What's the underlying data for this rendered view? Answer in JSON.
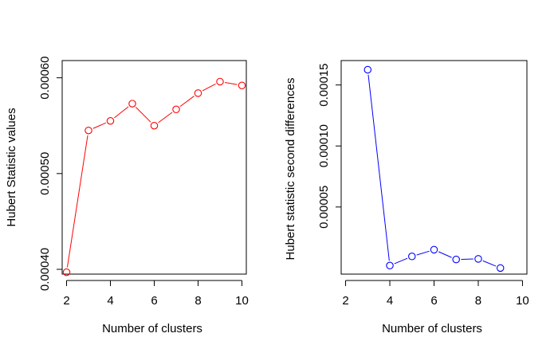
{
  "chart_data": [
    {
      "type": "line",
      "xlabel": "Number of clusters",
      "ylabel": "Hubert Statistic values",
      "xlim": [
        1.8,
        10.2
      ],
      "ylim": [
        0.000395,
        0.000618
      ],
      "xticks": [
        2,
        4,
        6,
        8,
        10
      ],
      "xtick_labels": [
        "2",
        "4",
        "6",
        "8",
        "10"
      ],
      "yticks": [
        0.0004,
        0.0005,
        0.0006
      ],
      "ytick_labels": [
        "0.00040",
        "0.00050",
        "0.00060"
      ],
      "color": "#ff0000",
      "marker": "open-circle",
      "grid": false,
      "series": [
        {
          "x": [
            2,
            3,
            4,
            5,
            6,
            7,
            8,
            9,
            10
          ],
          "values": [
            0.000397,
            0.000545,
            0.000555,
            0.000573,
            0.00055,
            0.000567,
            0.000584,
            0.000596,
            0.000592
          ]
        }
      ]
    },
    {
      "type": "line",
      "xlabel": "Number of clusters",
      "ylabel": "Hubert statistic second differences",
      "xlim": [
        1.8,
        10.2
      ],
      "ylim": [
        -5e-06,
        0.00017
      ],
      "xticks": [
        2,
        4,
        6,
        8,
        10
      ],
      "xtick_labels": [
        "2",
        "4",
        "6",
        "8",
        "10"
      ],
      "yticks": [
        5e-05,
        0.0001,
        0.00015
      ],
      "ytick_labels": [
        "0.00005",
        "0.00010",
        "0.00015"
      ],
      "color": "#0000ff",
      "marker": "open-circle",
      "grid": false,
      "series": [
        {
          "x": [
            3,
            4,
            5,
            6,
            7,
            8,
            9
          ],
          "values": [
            0.0001625,
            2e-06,
            9.5e-06,
            1.5e-05,
            7e-06,
            7.5e-06,
            0.0
          ]
        }
      ]
    }
  ]
}
